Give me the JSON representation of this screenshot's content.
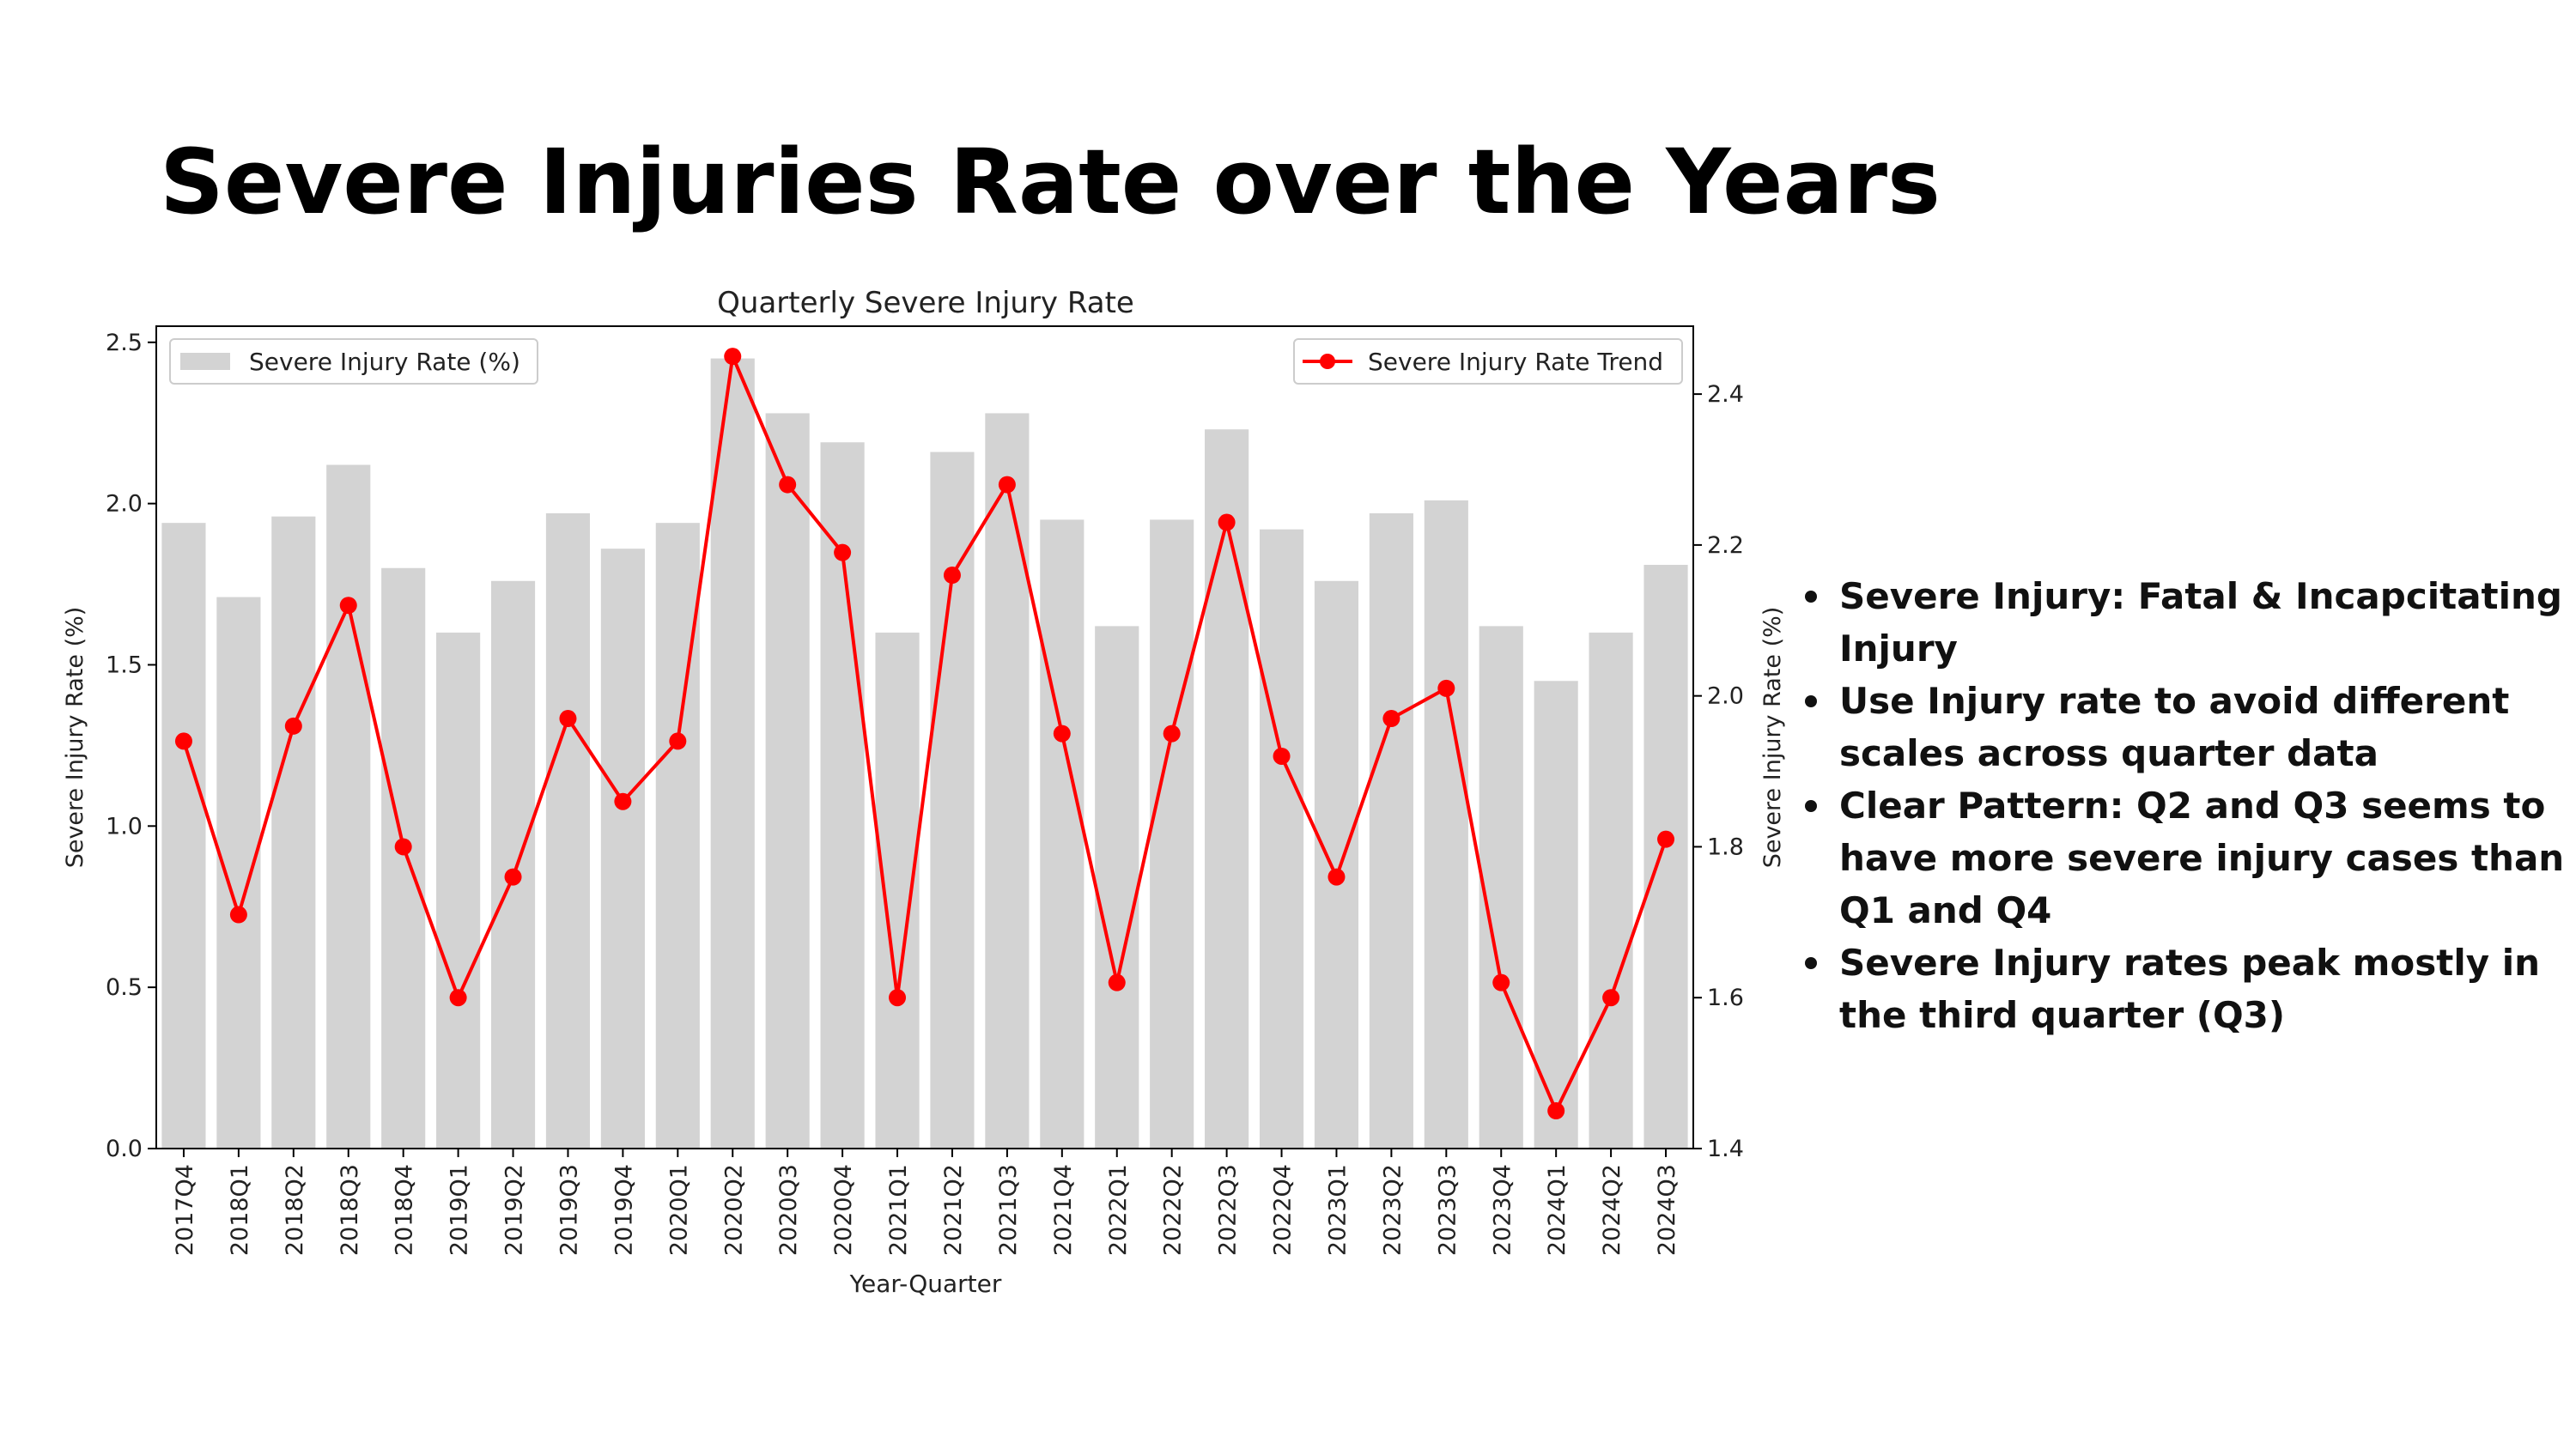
{
  "slide": {
    "title": "Severe Injuries Rate over the Years",
    "notes": [
      "Severe Injury: Fatal & Incapcitating Injury",
      "Use Injury rate to avoid different scales across quarter data",
      "Clear Pattern: Q2 and Q3 seems to have more severe injury cases than Q1 and Q4",
      "Severe Injury rates peak mostly in the third quarter (Q3)"
    ]
  },
  "chart_data": {
    "type": "bar",
    "title": "Quarterly Severe Injury Rate",
    "xlabel": "Year-Quarter",
    "ylabel": "Severe Injury Rate (%)",
    "ylabel_right": "Severe Injury Rate (%)",
    "categories": [
      "2017Q4",
      "2018Q1",
      "2018Q2",
      "2018Q3",
      "2018Q4",
      "2019Q1",
      "2019Q2",
      "2019Q3",
      "2019Q4",
      "2020Q1",
      "2020Q2",
      "2020Q3",
      "2020Q4",
      "2021Q1",
      "2021Q2",
      "2021Q3",
      "2021Q4",
      "2022Q1",
      "2022Q2",
      "2022Q3",
      "2022Q4",
      "2023Q1",
      "2023Q2",
      "2023Q3",
      "2023Q4",
      "2024Q1",
      "2024Q2",
      "2024Q3"
    ],
    "ylim": [
      0,
      2.55
    ],
    "yticks": [
      "0.0",
      "0.5",
      "1.0",
      "1.5",
      "2.0",
      "2.5"
    ],
    "ylim_right": [
      1.4,
      2.49
    ],
    "yticks_right": [
      "1.4",
      "1.6",
      "1.8",
      "2.0",
      "2.2",
      "2.4"
    ],
    "grid": false,
    "series": [
      {
        "name": "Severe Injury Rate (%)",
        "type": "bar",
        "axis": "left",
        "color": "#d3d3d3",
        "legend": "top-left",
        "values": [
          1.94,
          1.71,
          1.96,
          2.12,
          1.8,
          1.6,
          1.76,
          1.97,
          1.86,
          1.94,
          2.45,
          2.28,
          2.19,
          1.6,
          2.16,
          2.28,
          1.95,
          1.62,
          1.95,
          2.23,
          1.92,
          1.76,
          1.97,
          2.01,
          1.62,
          1.45,
          1.6,
          1.81
        ]
      },
      {
        "name": "Severe Injury Rate Trend",
        "type": "line",
        "axis": "right",
        "color": "#ff0000",
        "legend": "top-right",
        "values": [
          1.94,
          1.71,
          1.96,
          2.12,
          1.8,
          1.6,
          1.76,
          1.97,
          1.86,
          1.94,
          2.45,
          2.28,
          2.19,
          1.6,
          2.16,
          2.28,
          1.95,
          1.62,
          1.95,
          2.23,
          1.92,
          1.76,
          1.97,
          2.01,
          1.62,
          1.45,
          1.6,
          1.81
        ]
      }
    ]
  }
}
